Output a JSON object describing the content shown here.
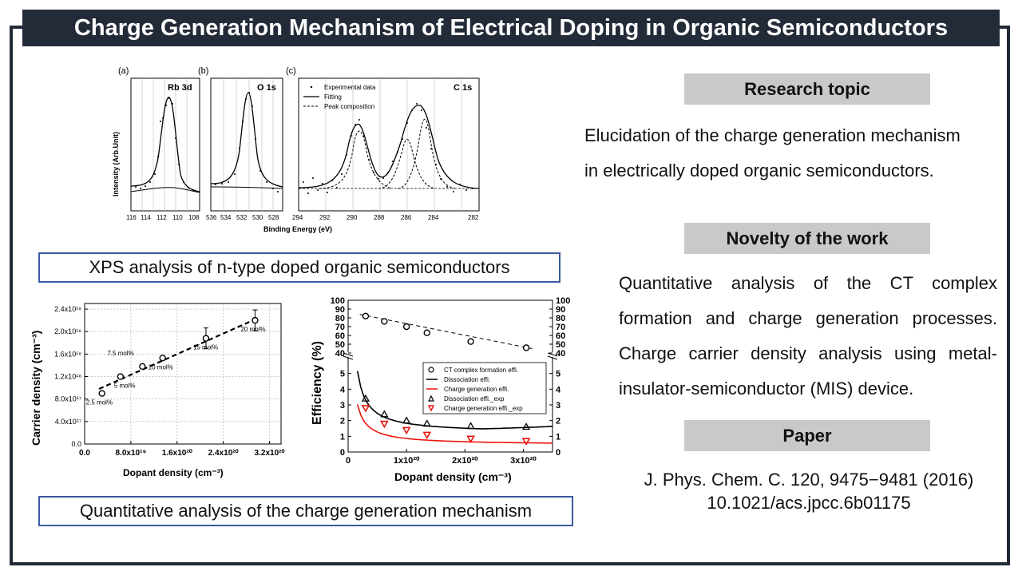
{
  "title": "Charge Generation Mechanism of Electrical Doping in Organic Semiconductors",
  "xps": {
    "panels": [
      {
        "letter": "(a)",
        "label": "Rb 3d",
        "ticks": [
          "116",
          "114",
          "112",
          "110",
          "108"
        ]
      },
      {
        "letter": "(b)",
        "label": "O 1s",
        "ticks": [
          "536",
          "534",
          "532",
          "530",
          "528"
        ]
      },
      {
        "letter": "(c)",
        "label": "C 1s",
        "ticks": [
          "294",
          "292",
          "290",
          "288",
          "286",
          "284",
          "282"
        ]
      }
    ],
    "ylabel": "Intensity (Arb.Unit)",
    "xlabel": "Binding Energy (eV)",
    "legend": [
      "Experimental data",
      "Fitting",
      "Peak composition"
    ],
    "caption": "XPS analysis of n-type doped organic semiconductors"
  },
  "carrier_chart": {
    "ylabel": "Carrier density (cm⁻³)",
    "xlabel": "Dopant density (cm⁻³)",
    "ytick_labels": [
      "0.0",
      "4.0x10¹⁷",
      "8.0x10¹⁷",
      "1.2x10¹⁸",
      "1.6x10¹⁸",
      "2.0x10¹⁸",
      "2.4x10¹⁸"
    ],
    "xtick_labels": [
      "0.0",
      "8.0x10¹⁹",
      "1.6x10²⁰",
      "2.4x10²⁰",
      "3.2x10²⁰"
    ],
    "point_labels": [
      "2.5 mol%",
      "5 mol%",
      "7.5 mol%",
      "10 mol%",
      "15 mol%",
      "20 mol%"
    ]
  },
  "efficiency_chart": {
    "ylabel": "Efficiency (%)",
    "xlabel": "Dopant density (cm⁻³)",
    "upper_ticks": [
      "40",
      "50",
      "60",
      "70",
      "80",
      "90",
      "100"
    ],
    "lower_ticks": [
      "0",
      "1",
      "2",
      "3",
      "4",
      "5"
    ],
    "xtick_labels": [
      "0",
      "1x10²⁰",
      "2x10²⁰",
      "3x10²⁰"
    ],
    "legend": [
      "CT complex formation effi.",
      "Dissociation effi.",
      "Charge generation effi.",
      "Dissociation effi._exp",
      "Charge generation effi._exp"
    ],
    "colors": {
      "black": "#000000",
      "red": "#e8140c"
    }
  },
  "chart_data": [
    {
      "type": "scatter",
      "title": "",
      "xlabel": "Dopant density (cm⁻³)",
      "ylabel": "Carrier density (cm⁻³)",
      "xlim": [
        0,
        3.4e+20
      ],
      "ylim": [
        0,
        2.5e+18
      ],
      "x": [
        3e+19,
        6.2e+19,
        1e+20,
        1.35e+20,
        2.1e+20,
        2.95e+20
      ],
      "y": [
        9e+17,
        1.2e+18,
        1.38e+18,
        1.53e+18,
        1.88e+18,
        2.2e+18
      ],
      "labels": [
        "2.5 mol%",
        "5 mol%",
        "7.5 mol%",
        "10 mol%",
        "15 mol%",
        "20 mol%"
      ],
      "fit": "dashed linear"
    },
    {
      "type": "line",
      "title": "",
      "xlabel": "Dopant density (cm⁻³)",
      "ylabel": "Efficiency (%)",
      "xlim": [
        0,
        3.5e+20
      ],
      "ylim_upper": [
        40,
        100
      ],
      "ylim_lower": [
        0,
        6
      ],
      "series": [
        {
          "name": "CT complex formation effi.",
          "x": [
            3e+19,
            6.2e+19,
            1e+20,
            1.35e+20,
            2.1e+20,
            3.05e+20
          ],
          "y": [
            82,
            76,
            70,
            63,
            53,
            46
          ]
        },
        {
          "name": "Dissociation effi._exp",
          "x": [
            3e+19,
            6.2e+19,
            1e+20,
            1.35e+20,
            2.1e+20,
            3.05e+20
          ],
          "y": [
            3.4,
            2.4,
            2.0,
            1.8,
            1.65,
            1.6
          ]
        },
        {
          "name": "Charge generation effi._exp",
          "x": [
            3e+19,
            6.2e+19,
            1e+20,
            1.35e+20,
            2.1e+20,
            3.05e+20
          ],
          "y": [
            2.8,
            1.8,
            1.4,
            1.1,
            0.85,
            0.7
          ]
        }
      ]
    }
  ],
  "caption2": "Quantitative analysis of the charge generation mechanism",
  "research": {
    "header": "Research topic",
    "lines": [
      "Elucidation of the charge generation mechanism",
      "in electrically doped organic semiconductors."
    ]
  },
  "novelty": {
    "header": "Novelty of the work",
    "lines": [
      "Quantitative analysis of the CT complex",
      "formation and charge generation processes.",
      "Charge carrier density analysis using metal-",
      "insulator-semiconductor (MIS) device."
    ]
  },
  "paper": {
    "header": "Paper",
    "citation": "J. Phys. Chem. C. 120, 9475−9481 (2016)",
    "doi": "10.1021/acs.jpcc.6b01175"
  }
}
